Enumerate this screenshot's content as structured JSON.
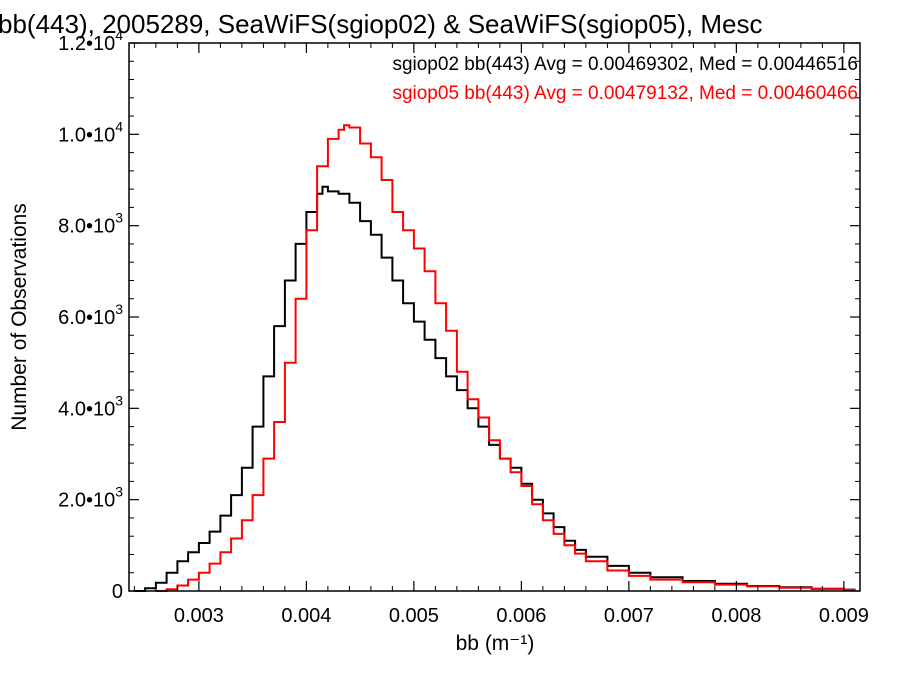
{
  "chart_data": {
    "type": "line",
    "title": "bb(443), 2005289, SeaWiFS(sgiop02) & SeaWiFS(sgiop05), Mesc",
    "xlabel": "bb (m⁻¹)",
    "ylabel": "Number of Observations",
    "xlim": [
      0.00235,
      0.00915
    ],
    "ylim": [
      0,
      12000
    ],
    "x_ticks": [
      {
        "value": 0.003,
        "label": "0.003"
      },
      {
        "value": 0.004,
        "label": "0.004"
      },
      {
        "value": 0.005,
        "label": "0.005"
      },
      {
        "value": 0.006,
        "label": "0.006"
      },
      {
        "value": 0.007,
        "label": "0.007"
      },
      {
        "value": 0.008,
        "label": "0.008"
      },
      {
        "value": 0.009,
        "label": "0.009"
      }
    ],
    "y_ticks": [
      {
        "value": 0,
        "mantissa": "0",
        "exponent": ""
      },
      {
        "value": 2000,
        "mantissa": "2.0•10",
        "exponent": "3"
      },
      {
        "value": 4000,
        "mantissa": "4.0•10",
        "exponent": "3"
      },
      {
        "value": 6000,
        "mantissa": "6.0•10",
        "exponent": "3"
      },
      {
        "value": 8000,
        "mantissa": "8.0•10",
        "exponent": "3"
      },
      {
        "value": 10000,
        "mantissa": "1.0•10",
        "exponent": "4"
      },
      {
        "value": 12000,
        "mantissa": "1.2•10",
        "exponent": "4"
      }
    ],
    "grid": false,
    "legend_position": "top-right",
    "series": [
      {
        "label": "sgiop02 bb(443) Avg = 0.00469302, Med = 0.00446516",
        "color": "#000000",
        "points": [
          [
            0.0024,
            0
          ],
          [
            0.0025,
            60
          ],
          [
            0.0026,
            180
          ],
          [
            0.0027,
            400
          ],
          [
            0.0028,
            650
          ],
          [
            0.0029,
            850
          ],
          [
            0.003,
            1050
          ],
          [
            0.0031,
            1300
          ],
          [
            0.0032,
            1650
          ],
          [
            0.0033,
            2100
          ],
          [
            0.0034,
            2700
          ],
          [
            0.0035,
            3600
          ],
          [
            0.0036,
            4700
          ],
          [
            0.0037,
            5800
          ],
          [
            0.0038,
            6800
          ],
          [
            0.0039,
            7600
          ],
          [
            0.004,
            8300
          ],
          [
            0.0041,
            8700
          ],
          [
            0.00415,
            8850
          ],
          [
            0.0042,
            8750
          ],
          [
            0.0043,
            8700
          ],
          [
            0.0044,
            8500
          ],
          [
            0.0045,
            8100
          ],
          [
            0.0046,
            7800
          ],
          [
            0.0047,
            7300
          ],
          [
            0.0048,
            6800
          ],
          [
            0.0049,
            6300
          ],
          [
            0.005,
            5900
          ],
          [
            0.0051,
            5500
          ],
          [
            0.0052,
            5100
          ],
          [
            0.0053,
            4700
          ],
          [
            0.0054,
            4400
          ],
          [
            0.0055,
            4000
          ],
          [
            0.0056,
            3600
          ],
          [
            0.0057,
            3200
          ],
          [
            0.0058,
            2900
          ],
          [
            0.0059,
            2700
          ],
          [
            0.006,
            2350
          ],
          [
            0.0061,
            2000
          ],
          [
            0.0062,
            1700
          ],
          [
            0.0063,
            1400
          ],
          [
            0.0064,
            1100
          ],
          [
            0.0065,
            900
          ],
          [
            0.0066,
            750
          ],
          [
            0.0068,
            550
          ],
          [
            0.007,
            400
          ],
          [
            0.0072,
            300
          ],
          [
            0.0075,
            220
          ],
          [
            0.0078,
            160
          ],
          [
            0.0081,
            110
          ],
          [
            0.0084,
            80
          ],
          [
            0.0087,
            50
          ],
          [
            0.009,
            30
          ],
          [
            0.0091,
            20
          ]
        ]
      },
      {
        "label": "sgiop05 bb(443) Avg = 0.00479132, Med = 0.00460466",
        "color": "#ff0000",
        "points": [
          [
            0.0026,
            0
          ],
          [
            0.0027,
            40
          ],
          [
            0.0028,
            120
          ],
          [
            0.0029,
            250
          ],
          [
            0.003,
            400
          ],
          [
            0.0031,
            600
          ],
          [
            0.0032,
            850
          ],
          [
            0.0033,
            1150
          ],
          [
            0.0034,
            1550
          ],
          [
            0.0035,
            2100
          ],
          [
            0.0036,
            2900
          ],
          [
            0.0037,
            3700
          ],
          [
            0.0038,
            5000
          ],
          [
            0.0039,
            6400
          ],
          [
            0.004,
            7900
          ],
          [
            0.0041,
            9300
          ],
          [
            0.0042,
            9900
          ],
          [
            0.0043,
            10100
          ],
          [
            0.00435,
            10200
          ],
          [
            0.0044,
            10150
          ],
          [
            0.0045,
            9800
          ],
          [
            0.0046,
            9500
          ],
          [
            0.0047,
            9000
          ],
          [
            0.0048,
            8300
          ],
          [
            0.0049,
            7900
          ],
          [
            0.005,
            7500
          ],
          [
            0.0051,
            7000
          ],
          [
            0.0052,
            6300
          ],
          [
            0.0053,
            5700
          ],
          [
            0.0054,
            4800
          ],
          [
            0.0055,
            4200
          ],
          [
            0.0056,
            3800
          ],
          [
            0.0057,
            3300
          ],
          [
            0.0058,
            2900
          ],
          [
            0.0059,
            2600
          ],
          [
            0.006,
            2300
          ],
          [
            0.0061,
            1900
          ],
          [
            0.0062,
            1550
          ],
          [
            0.0063,
            1250
          ],
          [
            0.0064,
            1000
          ],
          [
            0.0065,
            820
          ],
          [
            0.0066,
            650
          ],
          [
            0.0068,
            450
          ],
          [
            0.007,
            330
          ],
          [
            0.0072,
            250
          ],
          [
            0.0075,
            190
          ],
          [
            0.0078,
            140
          ],
          [
            0.0081,
            100
          ],
          [
            0.0084,
            70
          ],
          [
            0.0087,
            45
          ],
          [
            0.009,
            25
          ],
          [
            0.0091,
            15
          ]
        ]
      }
    ]
  }
}
